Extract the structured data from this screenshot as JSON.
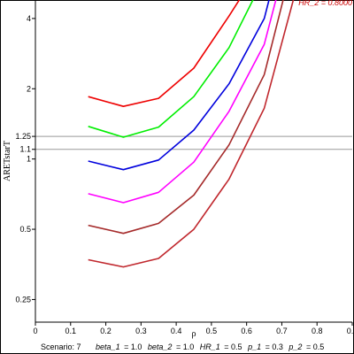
{
  "chart_data": {
    "type": "line",
    "xlabel": "ρ",
    "ylabel": "ARETstarT",
    "xlim": [
      0,
      0.9
    ],
    "ylim_log": [
      0.2,
      4.8
    ],
    "x_ticks": [
      "0",
      "0.1",
      "0.2",
      "0.3",
      "0.4",
      "0.5",
      "0.6",
      "0.7",
      "0.8",
      "0.9"
    ],
    "y_ticks": [
      "0.25",
      "0.5",
      "1",
      "1.1",
      "1.25",
      "2",
      "4"
    ],
    "y_tick_values": [
      0.25,
      0.5,
      1,
      1.1,
      1.25,
      2,
      4
    ],
    "reference_lines": [
      1.1,
      1.25
    ],
    "y_scale": "log",
    "corner_label": "HR_2 = 0.8000",
    "corner_label_color": "#cc0000",
    "caption": {
      "scenario": "Scenario: 7",
      "params": [
        {
          "name": "beta_1",
          "value": "= 1.0"
        },
        {
          "name": "beta_2",
          "value": "= 1.0"
        },
        {
          "name": "HR_1",
          "value": "= 0.5"
        },
        {
          "name": "p_1",
          "value": "= 0.3"
        },
        {
          "name": "p_2",
          "value": "= 0.5"
        }
      ]
    },
    "series": [
      {
        "color": "#ee0000",
        "x": [
          0.15,
          0.25,
          0.35,
          0.45,
          0.55,
          0.62
        ],
        "y": [
          1.85,
          1.68,
          1.82,
          2.45,
          4.1,
          6.0
        ]
      },
      {
        "color": "#00ee00",
        "x": [
          0.15,
          0.25,
          0.35,
          0.45,
          0.55,
          0.65
        ],
        "y": [
          1.38,
          1.24,
          1.37,
          1.85,
          3.0,
          6.0
        ]
      },
      {
        "color": "#0000dd",
        "x": [
          0.15,
          0.25,
          0.35,
          0.45,
          0.55,
          0.65,
          0.68
        ],
        "y": [
          0.98,
          0.9,
          0.99,
          1.33,
          2.1,
          4.0,
          6.0
        ]
      },
      {
        "color": "#ff00ff",
        "x": [
          0.15,
          0.25,
          0.35,
          0.45,
          0.55,
          0.65,
          0.7
        ],
        "y": [
          0.71,
          0.65,
          0.72,
          0.97,
          1.6,
          3.1,
          6.0
        ]
      },
      {
        "color": "#a52a2a",
        "x": [
          0.15,
          0.25,
          0.35,
          0.45,
          0.55,
          0.65,
          0.72
        ],
        "y": [
          0.52,
          0.48,
          0.53,
          0.7,
          1.15,
          2.3,
          6.0
        ]
      },
      {
        "color": "#c0272d",
        "x": [
          0.15,
          0.25,
          0.35,
          0.45,
          0.55,
          0.65,
          0.75
        ],
        "y": [
          0.37,
          0.345,
          0.375,
          0.5,
          0.82,
          1.65,
          6.0
        ]
      }
    ]
  }
}
